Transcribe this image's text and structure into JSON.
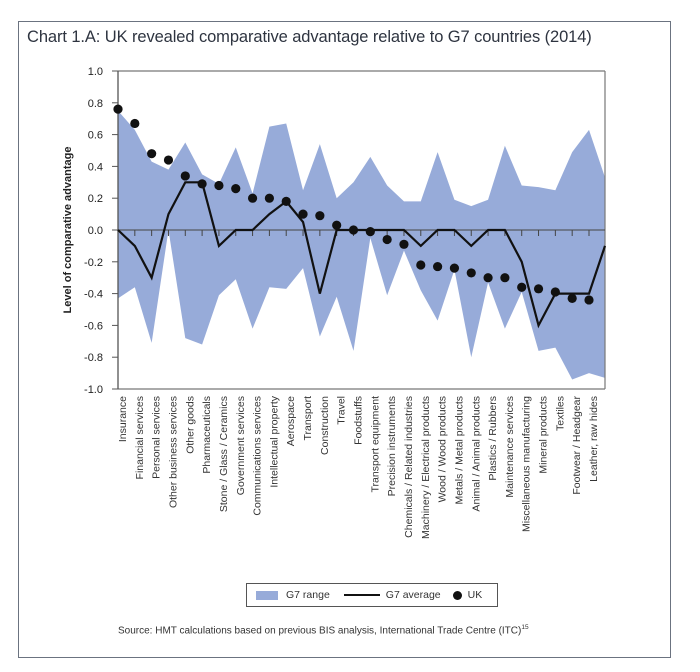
{
  "chart_data": {
    "type": "area",
    "title": "Chart 1.A: UK revealed comparative advantage relative to G7 countries (2014)",
    "xlabel": "",
    "ylabel": "Level of comparative advantage",
    "ylim": [
      -1.0,
      1.0
    ],
    "yticks": [
      "1.0",
      "0.8",
      "0.6",
      "0.4",
      "0.2",
      "0.0",
      "-0.2",
      "-0.4",
      "-0.6",
      "-0.8",
      "-1.0"
    ],
    "grid": false,
    "legend_position": "bottom",
    "categories": [
      "Insurance",
      "Financial services",
      "Personal services",
      "Other business services",
      "Other goods",
      "Pharmaceuticals",
      "Stone / Glass / Ceramics",
      "Government services",
      "Communications services",
      "Intellectual property",
      "Aerospace",
      "Transport",
      "Construction",
      "Travel",
      "Foodstuffs",
      "Transport equipment",
      "Precision instruments",
      "Chemicals / Related industries",
      "Machinery / Electrical products",
      "Wood / Wood products",
      "Metals / Metal products",
      "Animal / Animal products",
      "Plastics / Rubbers",
      "Maintenance services",
      "Miscellaneous manufacturing",
      "Mineral products",
      "Textiles",
      "Footwear / Headgear",
      "Leather, raw hides"
    ],
    "series": [
      {
        "name": "G7 range",
        "kind": "band",
        "color": "#97abd9",
        "upper": [
          0.75,
          0.63,
          0.43,
          0.38,
          0.55,
          0.35,
          0.29,
          0.52,
          0.23,
          0.65,
          0.67,
          0.25,
          0.54,
          0.2,
          0.3,
          0.46,
          0.28,
          0.18,
          0.18,
          0.49,
          0.19,
          0.15,
          0.19,
          0.53,
          0.28,
          0.27,
          0.25,
          0.49,
          0.63
        ],
        "lower": [
          -0.43,
          -0.36,
          -0.71,
          0.0,
          -0.68,
          -0.72,
          -0.41,
          -0.31,
          -0.62,
          -0.36,
          -0.37,
          -0.24,
          -0.67,
          -0.42,
          -0.76,
          -0.05,
          -0.41,
          -0.13,
          -0.38,
          -0.57,
          -0.25,
          -0.8,
          -0.33,
          -0.62,
          -0.39,
          -0.76,
          -0.74,
          -0.94,
          -0.9
        ],
        "right_edge": {
          "upper": 0.33,
          "lower": -0.93
        }
      },
      {
        "name": "G7 average",
        "kind": "line",
        "color": "#111111",
        "values": [
          0.0,
          -0.1,
          -0.3,
          0.1,
          0.3,
          0.3,
          -0.1,
          0.0,
          0.0,
          0.1,
          0.18,
          0.05,
          -0.4,
          0.0,
          0.0,
          0.0,
          0.0,
          0.0,
          -0.1,
          0.0,
          0.0,
          -0.1,
          0.0,
          0.0,
          -0.2,
          -0.6,
          -0.4,
          -0.4,
          -0.4
        ],
        "right_edge": -0.1
      },
      {
        "name": "UK",
        "kind": "scatter",
        "color": "#111111",
        "values": [
          0.76,
          0.67,
          0.48,
          0.44,
          0.34,
          0.29,
          0.28,
          0.26,
          0.2,
          0.2,
          0.18,
          0.1,
          0.09,
          0.03,
          0.0,
          -0.01,
          -0.06,
          -0.09,
          -0.22,
          -0.23,
          -0.24,
          -0.27,
          -0.3,
          -0.3,
          -0.36,
          -0.37,
          -0.39,
          -0.43,
          -0.44
        ]
      }
    ]
  },
  "legend": {
    "range_label": "G7 range",
    "average_label": "G7 average",
    "uk_label": "UK"
  },
  "source": {
    "text": "Source: HMT calculations based on previous BIS analysis, International Trade Centre (ITC)",
    "footnote": "15"
  }
}
